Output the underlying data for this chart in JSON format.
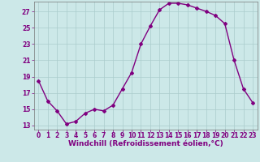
{
  "x": [
    0,
    1,
    2,
    3,
    4,
    5,
    6,
    7,
    8,
    9,
    10,
    11,
    12,
    13,
    14,
    15,
    16,
    17,
    18,
    19,
    20,
    21,
    22,
    23
  ],
  "y": [
    18.5,
    16.0,
    14.8,
    13.2,
    13.5,
    14.5,
    15.0,
    14.8,
    15.5,
    17.5,
    19.5,
    23.0,
    25.2,
    27.2,
    28.0,
    28.0,
    27.8,
    27.4,
    27.0,
    26.5,
    25.5,
    21.0,
    17.5,
    15.8
  ],
  "line_color": "#800080",
  "marker": "D",
  "marker_size": 2.0,
  "bg_color": "#cce8e8",
  "grid_color": "#aacccc",
  "xlabel": "Windchill (Refroidissement éolien,°C)",
  "xlabel_color": "#800080",
  "ylim_min": 12.5,
  "ylim_max": 28.2,
  "yticks": [
    13,
    15,
    17,
    19,
    21,
    23,
    25,
    27
  ],
  "xticks": [
    0,
    1,
    2,
    3,
    4,
    5,
    6,
    7,
    8,
    9,
    10,
    11,
    12,
    13,
    14,
    15,
    16,
    17,
    18,
    19,
    20,
    21,
    22,
    23
  ],
  "tick_label_color": "#800080",
  "tick_label_size": 5.5,
  "xlabel_size": 6.5,
  "linewidth": 1.0
}
